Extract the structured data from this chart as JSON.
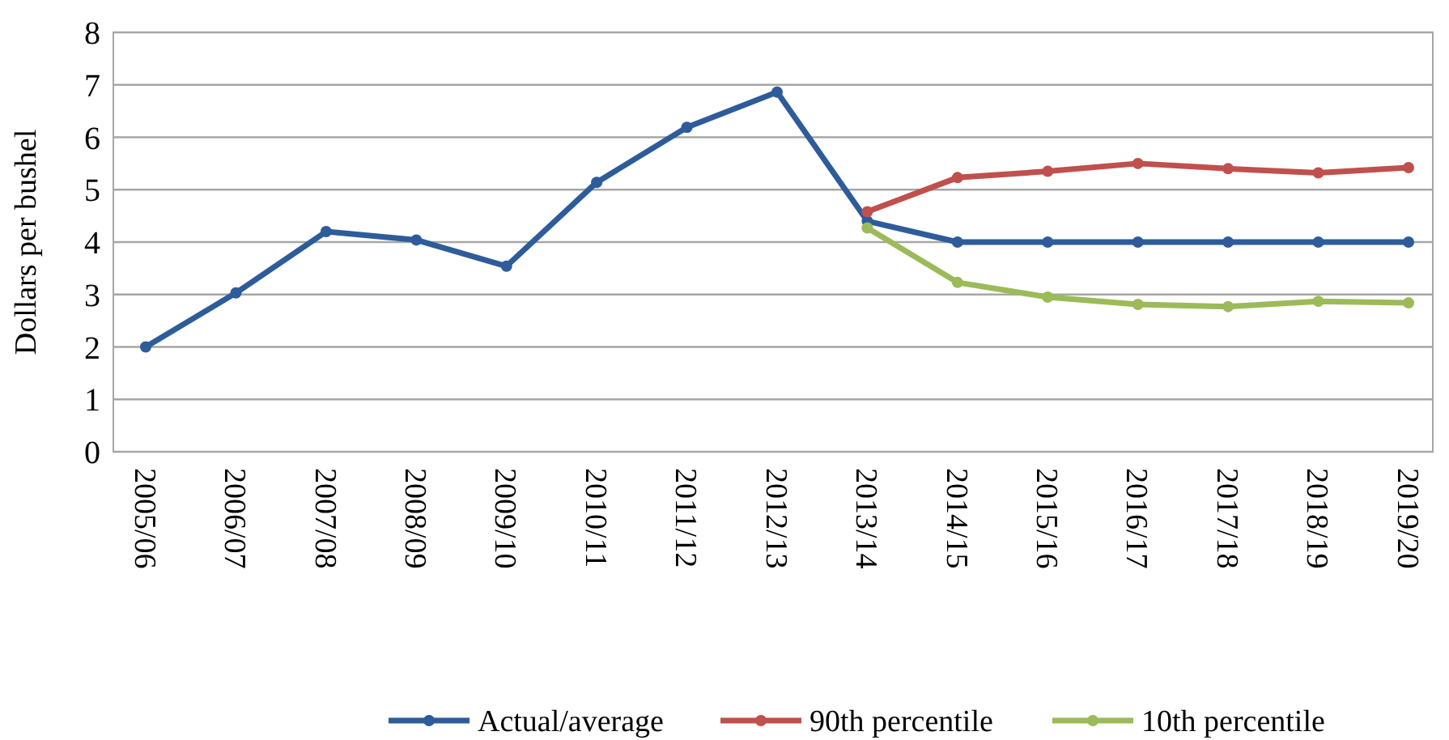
{
  "chart_data": {
    "type": "line",
    "ylabel": "Dollars per bushel",
    "categories": [
      "2005/06",
      "2006/07",
      "2007/08",
      "2008/09",
      "2009/10",
      "2010/11",
      "2011/12",
      "2012/13",
      "2013/14",
      "2014/15",
      "2015/16",
      "2016/17",
      "2017/18",
      "2018/19",
      "2019/20"
    ],
    "series": [
      {
        "name": "Actual/average",
        "color": "#2e5c9a",
        "values": [
          2.0,
          3.03,
          4.2,
          4.04,
          3.54,
          5.14,
          6.19,
          6.86,
          4.4,
          4.0,
          4.0,
          4.0,
          4.0,
          4.0,
          4.0
        ]
      },
      {
        "name": "90th percentile",
        "color": "#c0504d",
        "values": [
          null,
          null,
          null,
          null,
          null,
          null,
          null,
          null,
          4.58,
          5.23,
          5.35,
          5.5,
          5.4,
          5.32,
          5.42
        ]
      },
      {
        "name": "10th percentile",
        "color": "#9bbb59",
        "values": [
          null,
          null,
          null,
          null,
          null,
          null,
          null,
          null,
          4.27,
          3.23,
          2.95,
          2.81,
          2.77,
          2.87,
          2.84
        ]
      }
    ],
    "ylim": [
      0,
      8
    ],
    "yticks": [
      0,
      1,
      2,
      3,
      4,
      5,
      6,
      7,
      8
    ],
    "grid": "y",
    "legend": "bottom",
    "marker": "circle",
    "line_style": "solid"
  }
}
